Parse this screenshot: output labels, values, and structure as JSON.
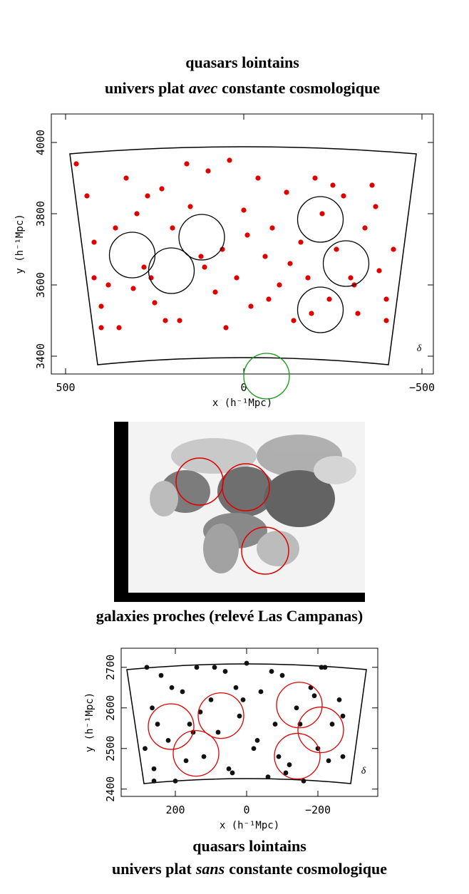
{
  "chart_data": [
    {
      "type": "scatter",
      "title": "quasars lointains",
      "subtitle": [
        "univers plat",
        "avec",
        "constante cosmologique"
      ],
      "x_label": "x (h⁻¹Mpc)",
      "y_label": "y (h⁻¹Mpc)",
      "annotation": "δ",
      "color": "#e00000",
      "x": [
        470,
        440,
        420,
        380,
        350,
        330,
        300,
        280,
        250,
        230,
        200,
        180,
        150,
        120,
        100,
        80,
        60,
        40,
        20,
        0,
        -20,
        -40,
        -60,
        -80,
        -100,
        -120,
        -140,
        -160,
        -180,
        -200,
        -220,
        -240,
        -260,
        -280,
        -300,
        -320,
        -340,
        -360,
        -380,
        -400,
        -420,
        420,
        400,
        360,
        310,
        270,
        220,
        160,
        110,
        50,
        -10,
        -70,
        -130,
        -190,
        -250,
        -310,
        -370,
        -400,
        400,
        260
      ],
      "y": [
        3940,
        3850,
        3720,
        3600,
        3480,
        3900,
        3800,
        3650,
        3550,
        3870,
        3760,
        3500,
        3820,
        3680,
        3920,
        3580,
        3700,
        3950,
        3620,
        3810,
        3540,
        3900,
        3680,
        3760,
        3600,
        3860,
        3500,
        3720,
        3620,
        3900,
        3800,
        3560,
        3700,
        3850,
        3620,
        3520,
        3760,
        3880,
        3640,
        3560,
        3700,
        3620,
        3540,
        3760,
        3590,
        3850,
        3500,
        3940,
        3650,
        3480,
        3740,
        3560,
        3660,
        3520,
        3880,
        3600,
        3820,
        3500,
        3480,
        3620
      ],
      "xlim": [
        540,
        -532
      ],
      "ylim": [
        3350,
        4080
      ],
      "xticks": [
        500,
        0,
        {
          "value": -500,
          "label": "−500"
        }
      ],
      "yticks": [
        3400,
        3600,
        3800,
        4000
      ],
      "circles": [
        {
          "x": 313,
          "y": 3684,
          "r": 64,
          "color": "#000000"
        },
        {
          "x": 203,
          "y": 3640,
          "r": 64,
          "color": "#000000"
        },
        {
          "x": 118,
          "y": 3734,
          "r": 64,
          "color": "#000000"
        },
        {
          "x": -215,
          "y": 3784,
          "r": 64,
          "color": "#000000"
        },
        {
          "x": -287,
          "y": 3660,
          "r": 64,
          "color": "#000000"
        },
        {
          "x": -215,
          "y": 3530,
          "r": 64,
          "color": "#000000"
        },
        {
          "x": -64,
          "y": 3344,
          "r": 64,
          "color": "#129a12"
        }
      ]
    },
    {
      "type": "scatter",
      "title": "quasars lointains",
      "subtitle": [
        "univers plat",
        "sans",
        "constante cosmologique"
      ],
      "x_label": "x (h⁻¹Mpc)",
      "y_label": "y (h⁻¹Mpc)",
      "annotation": "δ",
      "color": "#111111",
      "x": [
        280,
        265,
        260,
        240,
        220,
        200,
        180,
        160,
        140,
        120,
        100,
        80,
        60,
        40,
        20,
        0,
        -20,
        -40,
        -60,
        -80,
        -100,
        -120,
        -140,
        -160,
        -180,
        -200,
        -220,
        -240,
        -260,
        -270,
        285,
        250,
        210,
        170,
        130,
        90,
        50,
        10,
        -30,
        -70,
        -110,
        -150,
        -190,
        -230,
        -270,
        260,
        150,
        30,
        -90,
        -210
      ],
      "y": [
        2700,
        2600,
        2450,
        2680,
        2520,
        2420,
        2640,
        2560,
        2700,
        2480,
        2620,
        2540,
        2690,
        2440,
        2580,
        2710,
        2500,
        2640,
        2430,
        2560,
        2680,
        2460,
        2600,
        2420,
        2650,
        2500,
        2700,
        2560,
        2620,
        2480,
        2500,
        2560,
        2650,
        2470,
        2590,
        2700,
        2450,
        2620,
        2520,
        2690,
        2440,
        2560,
        2630,
        2470,
        2580,
        2420,
        2540,
        2650,
        2480,
        2700
      ],
      "xlim": [
        352,
        -368
      ],
      "ylim": [
        2382,
        2747
      ],
      "xticks": [
        200,
        0,
        {
          "value": -200,
          "label": "−200"
        }
      ],
      "yticks": [
        2400,
        2500,
        2600,
        2700
      ],
      "circles": [
        {
          "x": 212,
          "y": 2554,
          "r": 64,
          "color": "#dd0000"
        },
        {
          "x": 142,
          "y": 2488,
          "r": 64,
          "color": "#dd0000"
        },
        {
          "x": 72,
          "y": 2581,
          "r": 64,
          "color": "#dd0000"
        },
        {
          "x": -148,
          "y": 2607,
          "r": 64,
          "color": "#dd0000"
        },
        {
          "x": -208,
          "y": 2546,
          "r": 64,
          "color": "#dd0000"
        },
        {
          "x": -142,
          "y": 2481,
          "r": 64,
          "color": "#dd0000"
        }
      ]
    }
  ],
  "image_caption": "galaxies proches (relevé Las Campanas)"
}
